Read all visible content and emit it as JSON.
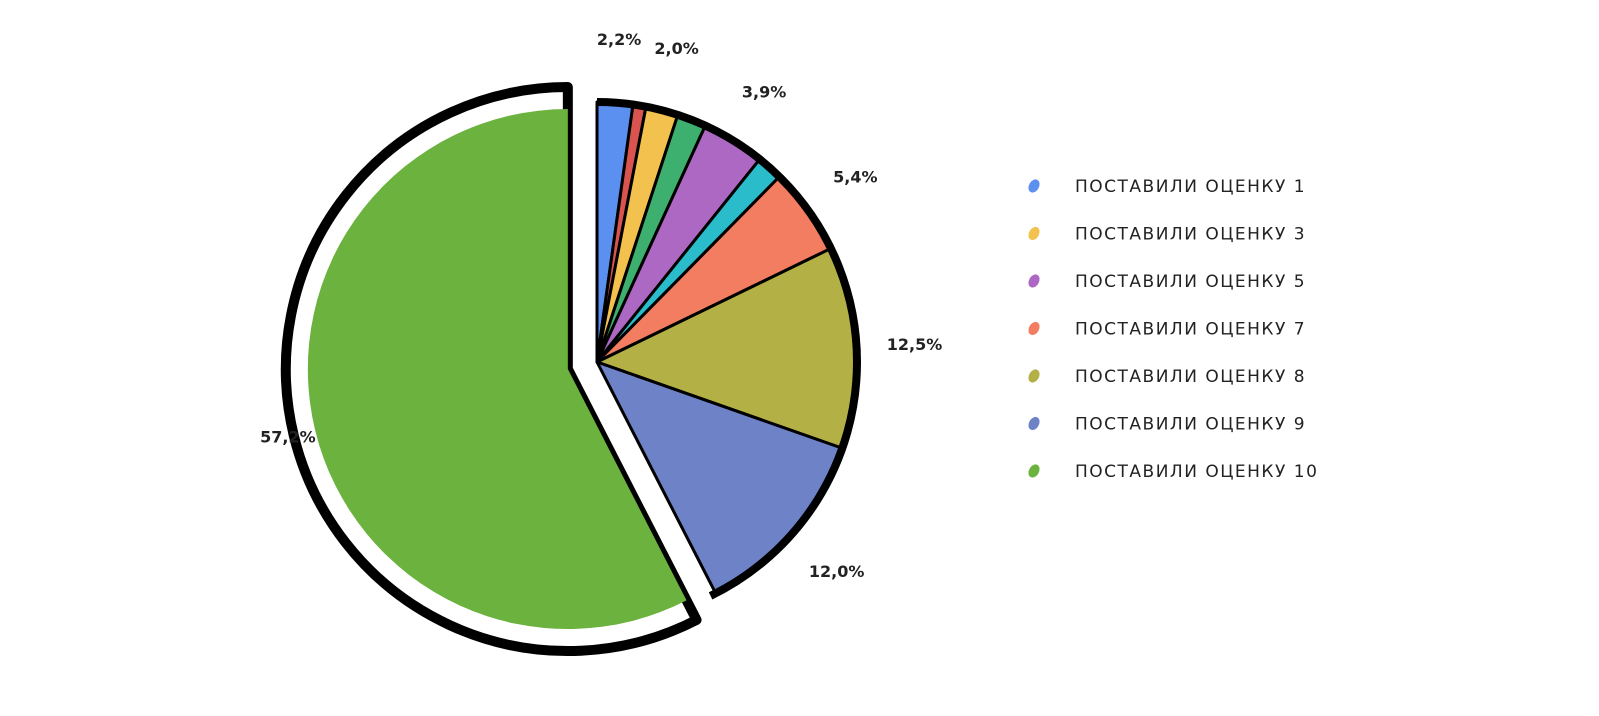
{
  "chart_data": {
    "type": "pie",
    "title": "",
    "slices": [
      {
        "name": "ПОСТАВИЛИ ОЦЕНКУ 1",
        "value": 2.2,
        "label": "2,2%",
        "color": "#5b8ff0",
        "in_legend": true
      },
      {
        "name": "",
        "value": 0.8,
        "label": "",
        "color": "#d9534f",
        "in_legend": false
      },
      {
        "name": "ПОСТАВИЛИ ОЦЕНКУ 3",
        "value": 2.0,
        "label": "2,0%",
        "color": "#f2c14e",
        "in_legend": true
      },
      {
        "name": "",
        "value": 1.8,
        "label": "",
        "color": "#3daf6e",
        "in_legend": false
      },
      {
        "name": "ПОСТАВИЛИ ОЦЕНКУ 5",
        "value": 3.9,
        "label": "3,9%",
        "color": "#ad68c4",
        "in_legend": true
      },
      {
        "name": "",
        "value": 1.6,
        "label": "",
        "color": "#2bbccc",
        "in_legend": false
      },
      {
        "name": "ПОСТАВИЛИ ОЦЕНКУ 7",
        "value": 5.4,
        "label": "5,4%",
        "color": "#f27d60",
        "in_legend": true
      },
      {
        "name": "ПОСТАВИЛИ ОЦЕНКУ 8",
        "value": 12.5,
        "label": "12,5%",
        "color": "#b3b045",
        "in_legend": true
      },
      {
        "name": "ПОСТАВИЛИ ОЦЕНКУ 9",
        "value": 12.0,
        "label": "12,0%",
        "color": "#6e82c8",
        "in_legend": true
      },
      {
        "name": "ПОСТАВИЛИ ОЦЕНКУ 10",
        "value": 57.2,
        "label": "57,2%",
        "color": "#6bb23e",
        "in_legend": true
      }
    ],
    "exploded_slice": "ПОСТАВИЛИ ОЦЕНКУ 10",
    "legend_position": "right"
  }
}
